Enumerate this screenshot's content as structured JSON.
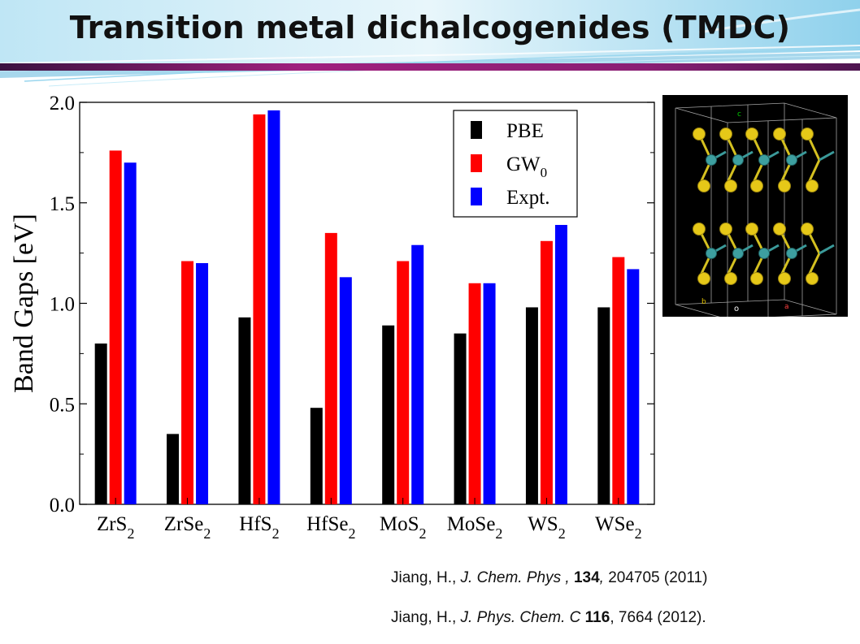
{
  "slide": {
    "title": "Transition metal dichalcogenides (TMDC)"
  },
  "colors": {
    "PBE": "#000000",
    "GW0": "#ff0000",
    "Expt": "#0000ff",
    "title_band_magenta": "#a0207e",
    "title_band_dark": "#6a1b5e"
  },
  "chart_data": {
    "type": "bar",
    "categories": [
      {
        "base": "ZrS",
        "sub": "2"
      },
      {
        "base": "ZrSe",
        "sub": "2"
      },
      {
        "base": "HfS",
        "sub": "2"
      },
      {
        "base": "HfSe",
        "sub": "2"
      },
      {
        "base": "MoS",
        "sub": "2"
      },
      {
        "base": "MoSe",
        "sub": "2"
      },
      {
        "base": "WS",
        "sub": "2"
      },
      {
        "base": "WSe",
        "sub": "2"
      }
    ],
    "series": [
      {
        "name": "PBE",
        "values": [
          0.8,
          0.35,
          0.93,
          0.48,
          0.89,
          0.85,
          0.98,
          0.98
        ]
      },
      {
        "name": "GW",
        "name_sub": "0",
        "values": [
          1.76,
          1.21,
          1.94,
          1.35,
          1.21,
          1.1,
          1.31,
          1.23
        ]
      },
      {
        "name": "Expt.",
        "values": [
          1.7,
          1.2,
          1.96,
          1.13,
          1.29,
          1.1,
          1.39,
          1.17
        ]
      }
    ],
    "ylabel": "Band Gaps   [eV]",
    "ylim": [
      0,
      2.0
    ],
    "yticks": [
      "0.0",
      "0.5",
      "1.0",
      "1.5",
      "2.0"
    ],
    "legend_position": "top-right"
  },
  "inset": {
    "type": "crystal-structure-image",
    "labels": {
      "c": "c",
      "b": "b",
      "o": "o",
      "a": "a"
    }
  },
  "references": [
    {
      "author": "Jiang, H., ",
      "journal": "J. Chem. Phys ,",
      "volume": "134",
      "rest_a": ",",
      "rest_b": " 204705  (2011)"
    },
    {
      "author": "Jiang, H., ",
      "journal": "J. Phys. Chem. C",
      "volume": "116",
      "rest_a": ",",
      "rest_b": " 7664 (2012)."
    }
  ]
}
